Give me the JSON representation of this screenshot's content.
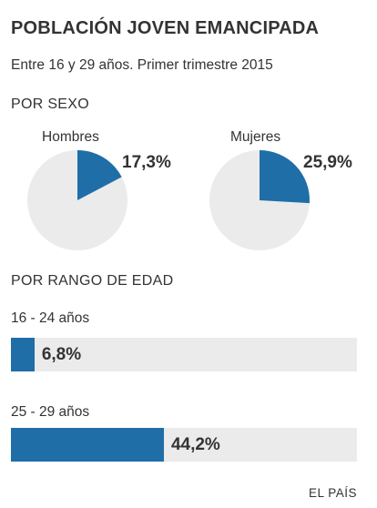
{
  "chart_data": [
    {
      "type": "pie",
      "title": "POBLACIÓN JOVEN EMANCIPADA",
      "subtitle": "Entre 16 y 29 años. Primer trimestre 2015",
      "section_label": "POR SEXO",
      "pies": [
        {
          "label": "Hombres",
          "value": 17.3,
          "value_label": "17,3%"
        },
        {
          "label": "Mujeres",
          "value": 25.9,
          "value_label": "25,9%"
        }
      ],
      "colors": {
        "highlight": "#1f6ea8",
        "rest": "#ebebeb"
      }
    },
    {
      "type": "bar",
      "section_label": "POR RANGO DE EDAD",
      "categories": [
        "16 - 24 años",
        "25 - 29 años"
      ],
      "values": [
        6.8,
        44.2
      ],
      "value_labels": [
        "6,8%",
        "44,2%"
      ],
      "xlim": [
        0,
        100
      ],
      "colors": {
        "bar": "#1f6ea8",
        "track": "#ebebeb"
      }
    }
  ],
  "source": "EL PAÍS"
}
